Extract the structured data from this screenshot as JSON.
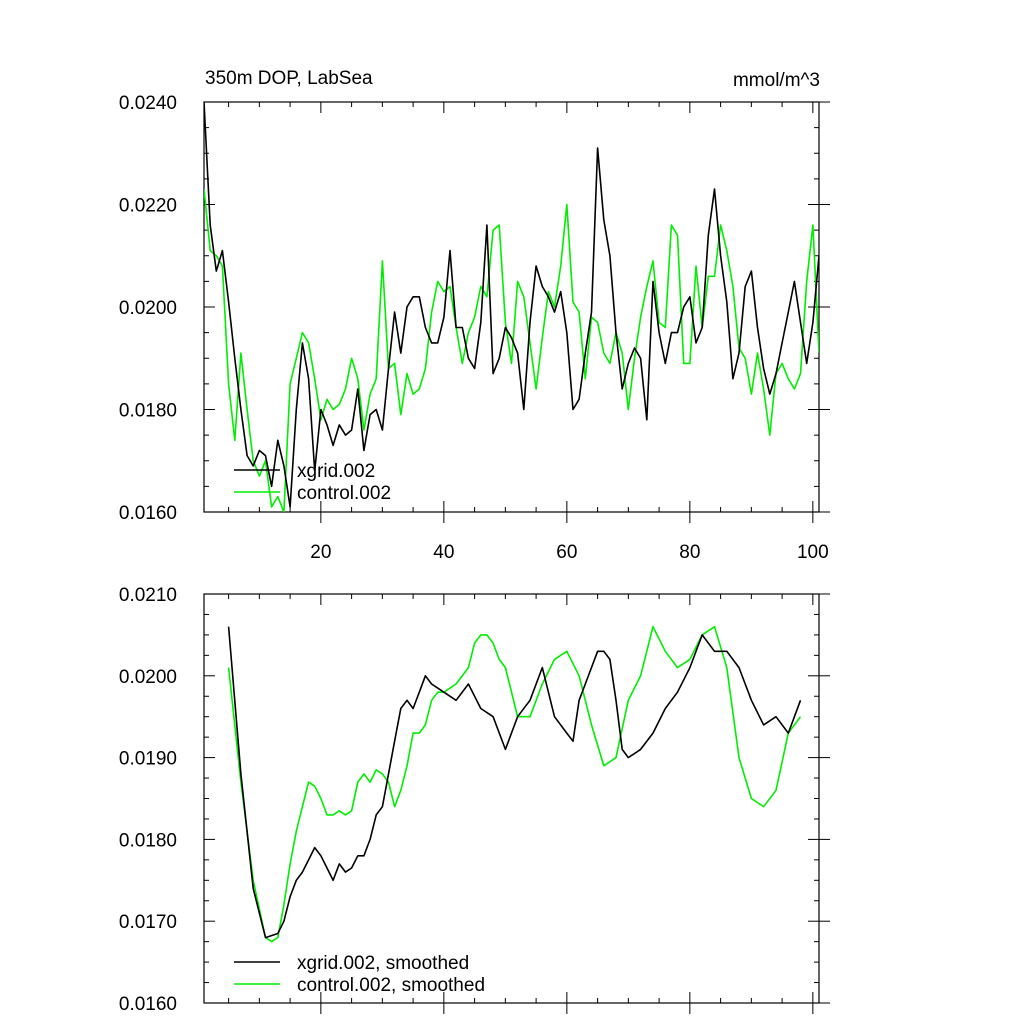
{
  "colors": {
    "xgrid": "#000000",
    "control": "#00ee00",
    "axis": "#000000"
  },
  "chart_data": [
    {
      "type": "line",
      "title": "350m DOP, LabSea",
      "units_label": "mmol/m^3",
      "xlabel": "",
      "ylabel": "",
      "xlim": [
        1,
        101
      ],
      "ylim": [
        0.016,
        0.024
      ],
      "xticks": [
        20,
        40,
        60,
        80,
        100
      ],
      "xtick_labels": [
        "20",
        "40",
        "60",
        "80",
        "100"
      ],
      "yticks": [
        0.016,
        0.018,
        0.02,
        0.022,
        0.024
      ],
      "ytick_labels": [
        "0.0160",
        "0.0180",
        "0.0200",
        "0.0220",
        "0.0240"
      ],
      "legend_position": "bottom-left",
      "series": [
        {
          "name": "xgrid.002",
          "color_key": "xgrid",
          "x": [
            1,
            2,
            3,
            4,
            5,
            6,
            7,
            8,
            9,
            10,
            11,
            12,
            13,
            14,
            15,
            16,
            17,
            18,
            19,
            20,
            21,
            22,
            23,
            24,
            25,
            26,
            27,
            28,
            29,
            30,
            31,
            32,
            33,
            34,
            35,
            36,
            37,
            38,
            39,
            40,
            41,
            42,
            43,
            44,
            45,
            46,
            47,
            48,
            49,
            50,
            51,
            52,
            53,
            54,
            55,
            56,
            57,
            58,
            59,
            60,
            61,
            62,
            63,
            64,
            65,
            66,
            67,
            68,
            69,
            70,
            71,
            72,
            73,
            74,
            75,
            76,
            77,
            78,
            79,
            80,
            81,
            82,
            83,
            84,
            85,
            86,
            87,
            88,
            89,
            90,
            91,
            92,
            93,
            94,
            95,
            96,
            97,
            98,
            99,
            100,
            101
          ],
          "values": [
            0.024,
            0.0216,
            0.0207,
            0.0211,
            0.0201,
            0.019,
            0.018,
            0.0171,
            0.0169,
            0.0172,
            0.0171,
            0.0165,
            0.0174,
            0.0169,
            0.0161,
            0.018,
            0.0193,
            0.0186,
            0.0168,
            0.018,
            0.0177,
            0.0173,
            0.0177,
            0.0175,
            0.0176,
            0.0184,
            0.0172,
            0.0179,
            0.018,
            0.0176,
            0.0188,
            0.0199,
            0.0191,
            0.02,
            0.0202,
            0.0202,
            0.0196,
            0.0193,
            0.0193,
            0.0198,
            0.0211,
            0.0196,
            0.0196,
            0.019,
            0.0188,
            0.0197,
            0.0216,
            0.0187,
            0.019,
            0.0196,
            0.0194,
            0.0191,
            0.018,
            0.0197,
            0.0208,
            0.0204,
            0.0202,
            0.0199,
            0.0203,
            0.0195,
            0.018,
            0.0182,
            0.0191,
            0.0199,
            0.0231,
            0.0217,
            0.021,
            0.0195,
            0.0184,
            0.0189,
            0.0192,
            0.019,
            0.0178,
            0.0205,
            0.0195,
            0.0189,
            0.0195,
            0.0195,
            0.02,
            0.0202,
            0.0193,
            0.0196,
            0.0214,
            0.0223,
            0.021,
            0.0201,
            0.0186,
            0.0191,
            0.0204,
            0.0207,
            0.0196,
            0.0188,
            0.0183,
            0.0187,
            0.0193,
            0.0199,
            0.0205,
            0.0197,
            0.0189,
            0.0197,
            0.021
          ]
        },
        {
          "name": "control.002",
          "color_key": "control",
          "x": [
            1,
            2,
            3,
            4,
            5,
            6,
            7,
            8,
            9,
            10,
            11,
            12,
            13,
            14,
            15,
            16,
            17,
            18,
            19,
            20,
            21,
            22,
            23,
            24,
            25,
            26,
            27,
            28,
            29,
            30,
            31,
            32,
            33,
            34,
            35,
            36,
            37,
            38,
            39,
            40,
            41,
            42,
            43,
            44,
            45,
            46,
            47,
            48,
            49,
            50,
            51,
            52,
            53,
            54,
            55,
            56,
            57,
            58,
            59,
            60,
            61,
            62,
            63,
            64,
            65,
            66,
            67,
            68,
            69,
            70,
            71,
            72,
            73,
            74,
            75,
            76,
            77,
            78,
            79,
            80,
            81,
            82,
            83,
            84,
            85,
            86,
            87,
            88,
            89,
            90,
            91,
            92,
            93,
            94,
            95,
            96,
            97,
            98,
            99,
            100,
            101
          ],
          "values": [
            0.0223,
            0.0211,
            0.021,
            0.0208,
            0.0185,
            0.0174,
            0.0191,
            0.018,
            0.017,
            0.0167,
            0.017,
            0.0161,
            0.0163,
            0.016,
            0.0185,
            0.019,
            0.0195,
            0.0193,
            0.0186,
            0.0178,
            0.0182,
            0.018,
            0.0181,
            0.0184,
            0.019,
            0.0186,
            0.0176,
            0.0183,
            0.0186,
            0.0209,
            0.0188,
            0.0189,
            0.0179,
            0.0187,
            0.0183,
            0.0184,
            0.0188,
            0.0199,
            0.0205,
            0.0203,
            0.0204,
            0.0196,
            0.0189,
            0.0195,
            0.0198,
            0.0204,
            0.0202,
            0.0215,
            0.0216,
            0.0197,
            0.0189,
            0.0205,
            0.0202,
            0.0193,
            0.0184,
            0.0194,
            0.0203,
            0.02,
            0.0208,
            0.022,
            0.0201,
            0.0199,
            0.0186,
            0.0198,
            0.0197,
            0.0191,
            0.0189,
            0.0195,
            0.0191,
            0.018,
            0.019,
            0.0198,
            0.0204,
            0.0209,
            0.0197,
            0.0196,
            0.0216,
            0.0214,
            0.0189,
            0.0189,
            0.0208,
            0.0196,
            0.0206,
            0.0206,
            0.0216,
            0.0211,
            0.0204,
            0.0192,
            0.019,
            0.0183,
            0.0191,
            0.0184,
            0.0175,
            0.0187,
            0.0189,
            0.0186,
            0.0184,
            0.0187,
            0.0205,
            0.0216,
            0.0191
          ]
        }
      ]
    },
    {
      "type": "line",
      "title": "",
      "xlabel": "",
      "ylabel": "",
      "xlim": [
        1,
        101
      ],
      "ylim": [
        0.016,
        0.021
      ],
      "xticks": [
        20,
        40,
        60,
        80,
        100
      ],
      "xtick_labels": [],
      "yticks": [
        0.016,
        0.017,
        0.018,
        0.019,
        0.02,
        0.021
      ],
      "ytick_labels": [
        "0.0160",
        "0.0170",
        "0.0180",
        "0.0190",
        "0.0200",
        "0.0210"
      ],
      "legend_position": "bottom-left",
      "series": [
        {
          "name": "xgrid.002, smoothed",
          "color_key": "xgrid",
          "x": [
            5,
            7,
            9,
            11,
            13,
            14,
            15,
            16,
            17,
            18,
            19,
            20,
            21,
            22,
            23,
            24,
            25,
            26,
            27,
            28,
            29,
            30,
            31,
            32,
            33,
            34,
            35,
            36,
            37,
            38,
            39,
            40,
            42,
            44,
            46,
            48,
            50,
            52,
            54,
            56,
            58,
            60,
            61,
            62,
            63,
            65,
            66,
            67,
            68,
            69,
            70,
            71,
            72,
            74,
            76,
            78,
            80,
            82,
            84,
            86,
            88,
            90,
            92,
            94,
            96,
            98
          ],
          "values": [
            0.0206,
            0.0188,
            0.0174,
            0.0168,
            0.01685,
            0.017,
            0.0173,
            0.0175,
            0.0176,
            0.01775,
            0.0179,
            0.0178,
            0.01765,
            0.0175,
            0.0177,
            0.0176,
            0.01765,
            0.0178,
            0.0178,
            0.018,
            0.0183,
            0.0184,
            0.0188,
            0.0192,
            0.0196,
            0.0197,
            0.0196,
            0.0198,
            0.02,
            0.0199,
            0.01985,
            0.0198,
            0.0197,
            0.0199,
            0.0196,
            0.0195,
            0.0191,
            0.0195,
            0.0197,
            0.0201,
            0.0195,
            0.0193,
            0.0192,
            0.0197,
            0.0199,
            0.0203,
            0.0203,
            0.0202,
            0.0197,
            0.0191,
            0.019,
            0.01905,
            0.0191,
            0.0193,
            0.0196,
            0.0198,
            0.0201,
            0.0205,
            0.0203,
            0.0203,
            0.0201,
            0.0197,
            0.0194,
            0.0195,
            0.0193,
            0.0197
          ]
        },
        {
          "name": "control.002, smoothed",
          "color_key": "control",
          "x": [
            5,
            7,
            9,
            11,
            12,
            13,
            14,
            15,
            16,
            17,
            18,
            19,
            20,
            21,
            22,
            23,
            24,
            25,
            26,
            27,
            28,
            29,
            30,
            31,
            32,
            33,
            34,
            35,
            36,
            37,
            38,
            39,
            40,
            42,
            44,
            45,
            46,
            47,
            48,
            49,
            50,
            52,
            54,
            56,
            58,
            60,
            62,
            64,
            66,
            68,
            70,
            72,
            74,
            76,
            78,
            80,
            82,
            84,
            86,
            88,
            90,
            92,
            94,
            96,
            98
          ],
          "values": [
            0.0201,
            0.0187,
            0.0175,
            0.0168,
            0.01675,
            0.0168,
            0.0172,
            0.0177,
            0.0181,
            0.0184,
            0.0187,
            0.01865,
            0.0185,
            0.0183,
            0.0183,
            0.01835,
            0.0183,
            0.01835,
            0.0187,
            0.0188,
            0.0187,
            0.01885,
            0.0188,
            0.0187,
            0.0184,
            0.0186,
            0.0189,
            0.0193,
            0.0193,
            0.0194,
            0.0197,
            0.0198,
            0.0198,
            0.0199,
            0.0201,
            0.0204,
            0.0205,
            0.0205,
            0.0204,
            0.0202,
            0.0201,
            0.0195,
            0.0195,
            0.0199,
            0.0202,
            0.0203,
            0.02,
            0.0194,
            0.0189,
            0.019,
            0.0197,
            0.02,
            0.0206,
            0.0203,
            0.0201,
            0.0202,
            0.0205,
            0.0206,
            0.0201,
            0.019,
            0.0185,
            0.0184,
            0.0186,
            0.0193,
            0.0195
          ]
        }
      ]
    }
  ]
}
